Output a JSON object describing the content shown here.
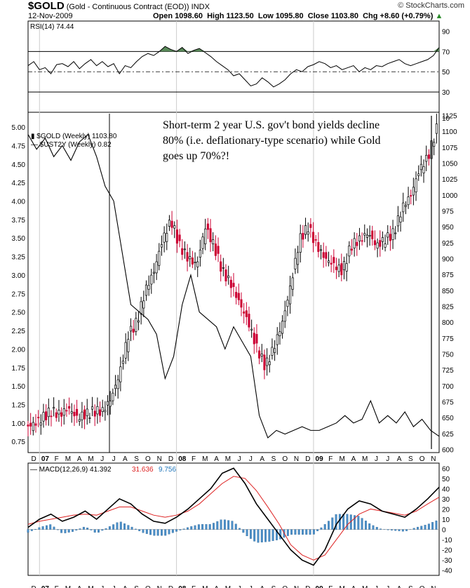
{
  "header": {
    "symbol": "$GOLD",
    "description": "(Gold - Continuous Contract (EOD))",
    "exchange": "INDX",
    "date": "12-Nov-2009",
    "open": "Open 1098.60",
    "high": "High 1123.50",
    "low": "Low 1095.80",
    "close": "Close 1103.80",
    "chg": "Chg +8.60 (+0.79%)",
    "brand": "© StockCharts.com"
  },
  "annotation": "Short-term 2 year U.S. gov't bond yields decline 80% (i.e. deflationary-type scenario) while Gold goes up 70%?!",
  "colors": {
    "up": "#000000",
    "down": "#cc0033",
    "rsi_fill": "#5a8a5a",
    "macd_signal": "#dd2222",
    "macd_hist": "#4b8fc8",
    "hist_value": "#2277bb"
  },
  "chart_data": [
    {
      "type": "line",
      "panel": "rsi",
      "label": "RSI(14)",
      "value_label": "74.44",
      "y_ticks": [
        90,
        70,
        50,
        30
      ],
      "ylim": [
        10,
        100
      ],
      "ref_lines": [
        70,
        50,
        30
      ],
      "x": [
        0,
        2,
        4,
        6,
        8,
        10,
        12,
        14,
        16,
        18,
        20,
        22,
        24,
        26,
        28,
        30,
        32,
        34,
        36,
        38,
        40,
        42,
        44,
        46,
        48,
        50,
        52,
        54,
        56,
        58,
        60,
        62,
        64,
        66,
        68,
        70,
        72,
        74,
        76,
        78,
        80,
        82,
        84,
        86,
        88,
        90,
        92,
        94,
        96,
        98,
        100,
        102,
        104,
        106,
        108,
        110,
        112,
        114,
        116,
        118,
        120,
        122,
        124,
        126,
        128,
        130,
        132,
        134,
        136,
        138,
        140,
        142,
        144
      ],
      "values": [
        56,
        60,
        52,
        54,
        48,
        57,
        58,
        55,
        60,
        53,
        58,
        62,
        56,
        60,
        55,
        58,
        48,
        56,
        54,
        60,
        65,
        68,
        66,
        70,
        75,
        72,
        70,
        74,
        68,
        71,
        73,
        69,
        65,
        60,
        56,
        52,
        46,
        48,
        42,
        36,
        38,
        44,
        40,
        35,
        38,
        42,
        48,
        52,
        50,
        55,
        57,
        60,
        58,
        54,
        56,
        52,
        54,
        56,
        50,
        54,
        52,
        56,
        55,
        58,
        60,
        62,
        58,
        56,
        58,
        60,
        62,
        66,
        74
      ]
    },
    {
      "type": "line",
      "panel": "price",
      "series": [
        {
          "name": "$GOLD (Weekly) 1103.80",
          "kind": "candlestick-approx",
          "axis": "right",
          "x": [
            0,
            3,
            6,
            9,
            12,
            15,
            18,
            21,
            24,
            27,
            30,
            33,
            36,
            39,
            42,
            45,
            48,
            51,
            54,
            57,
            60,
            63,
            66,
            69,
            72,
            75,
            78,
            81,
            84,
            87,
            90,
            93,
            96,
            99,
            102,
            105,
            108,
            111,
            114,
            117,
            120,
            123,
            126,
            129,
            132,
            135,
            138,
            141,
            144
          ],
          "values": [
            635,
            640,
            650,
            660,
            655,
            665,
            650,
            655,
            660,
            660,
            680,
            720,
            780,
            800,
            850,
            880,
            930,
            960,
            920,
            900,
            890,
            950,
            920,
            880,
            860,
            830,
            800,
            760,
            730,
            760,
            800,
            860,
            930,
            950,
            920,
            900,
            890,
            880,
            920,
            930,
            940,
            920,
            930,
            940,
            980,
            1000,
            1040,
            1060,
            1103.8
          ]
        },
        {
          "name": "$UST2Y (Weekly) 0.82",
          "axis": "left",
          "x": [
            0,
            3,
            6,
            9,
            12,
            15,
            18,
            21,
            24,
            27,
            30,
            33,
            36,
            39,
            42,
            45,
            48,
            51,
            54,
            57,
            60,
            63,
            66,
            69,
            72,
            75,
            78,
            81,
            84,
            87,
            90,
            93,
            96,
            99,
            102,
            105,
            108,
            111,
            114,
            117,
            120,
            123,
            126,
            129,
            132,
            135,
            138,
            141,
            144
          ],
          "values": [
            4.9,
            4.7,
            4.85,
            4.6,
            4.75,
            4.55,
            4.8,
            4.9,
            4.6,
            4.2,
            4.0,
            3.3,
            2.6,
            2.5,
            2.4,
            2.2,
            1.6,
            1.9,
            2.6,
            3.0,
            2.5,
            2.4,
            2.3,
            2.0,
            2.3,
            2.1,
            1.9,
            1.1,
            0.8,
            0.9,
            0.85,
            0.9,
            0.95,
            0.9,
            0.9,
            0.95,
            1.0,
            1.1,
            1.0,
            1.05,
            1.3,
            1.0,
            1.1,
            1.0,
            1.15,
            0.95,
            1.05,
            0.9,
            0.82
          ]
        }
      ],
      "left_ticks": [
        "5.00",
        "4.75",
        "4.50",
        "4.25",
        "4.00",
        "3.75",
        "3.50",
        "3.25",
        "3.00",
        "2.75",
        "2.50",
        "2.25",
        "2.00",
        "1.75",
        "1.50",
        "1.25",
        "1.00",
        "0.75"
      ],
      "right_ticks": [
        "1125",
        "1100",
        "1075",
        "1050",
        "1025",
        "1000",
        "975",
        "950",
        "925",
        "900",
        "875",
        "850",
        "825",
        "800",
        "775",
        "750",
        "725",
        "700",
        "675",
        "650",
        "625",
        "600"
      ],
      "extra_right_tick": "10",
      "left_ylim": [
        0.6,
        5.2
      ],
      "right_ylim": [
        595,
        1130
      ]
    },
    {
      "type": "line",
      "panel": "macd",
      "label": "MACD(12,26,9)",
      "values_text": [
        "41.392",
        "31.636",
        "9.756"
      ],
      "y_ticks": [
        "60",
        "50",
        "40",
        "30",
        "20",
        "10",
        "0",
        "-10",
        "-20",
        "-30",
        "-40"
      ],
      "ylim": [
        -45,
        65
      ],
      "x": [
        0,
        4,
        8,
        12,
        16,
        20,
        24,
        28,
        32,
        36,
        40,
        44,
        48,
        52,
        56,
        60,
        64,
        68,
        72,
        76,
        80,
        84,
        88,
        92,
        96,
        100,
        104,
        108,
        112,
        116,
        120,
        124,
        128,
        132,
        136,
        140,
        144
      ],
      "series": [
        {
          "name": "MACD",
          "values": [
            2,
            10,
            15,
            8,
            12,
            18,
            10,
            20,
            30,
            25,
            15,
            8,
            6,
            12,
            20,
            30,
            40,
            55,
            60,
            45,
            25,
            10,
            -5,
            -20,
            -30,
            -35,
            -20,
            5,
            20,
            28,
            25,
            18,
            15,
            12,
            20,
            30,
            41.392
          ]
        },
        {
          "name": "Signal",
          "values": [
            5,
            8,
            10,
            12,
            14,
            15,
            14,
            18,
            22,
            22,
            18,
            14,
            12,
            14,
            18,
            25,
            35,
            45,
            52,
            50,
            38,
            22,
            5,
            -15,
            -25,
            -30,
            -25,
            -10,
            5,
            15,
            20,
            18,
            16,
            14,
            18,
            25,
            31.636
          ]
        },
        {
          "name": "Histogram",
          "values": [
            -3,
            2,
            5,
            -4,
            -2,
            3,
            -4,
            2,
            8,
            3,
            -3,
            -6,
            -6,
            -2,
            2,
            5,
            5,
            10,
            8,
            -5,
            -13,
            -12,
            -10,
            -5,
            -5,
            -5,
            5,
            15,
            15,
            13,
            5,
            0,
            -1,
            -2,
            2,
            5,
            9.756
          ]
        }
      ]
    },
    {
      "type": "axis",
      "month_labels": [
        "D",
        "07",
        "F",
        "M",
        "A",
        "M",
        "J",
        "J",
        "A",
        "S",
        "O",
        "N",
        "D",
        "08",
        "F",
        "M",
        "A",
        "M",
        "J",
        "J",
        "A",
        "S",
        "O",
        "N",
        "D",
        "09",
        "F",
        "M",
        "A",
        "M",
        "J",
        "J",
        "A",
        "S",
        "O",
        "N"
      ],
      "year_labels": [
        "07",
        "08",
        "09"
      ]
    }
  ]
}
